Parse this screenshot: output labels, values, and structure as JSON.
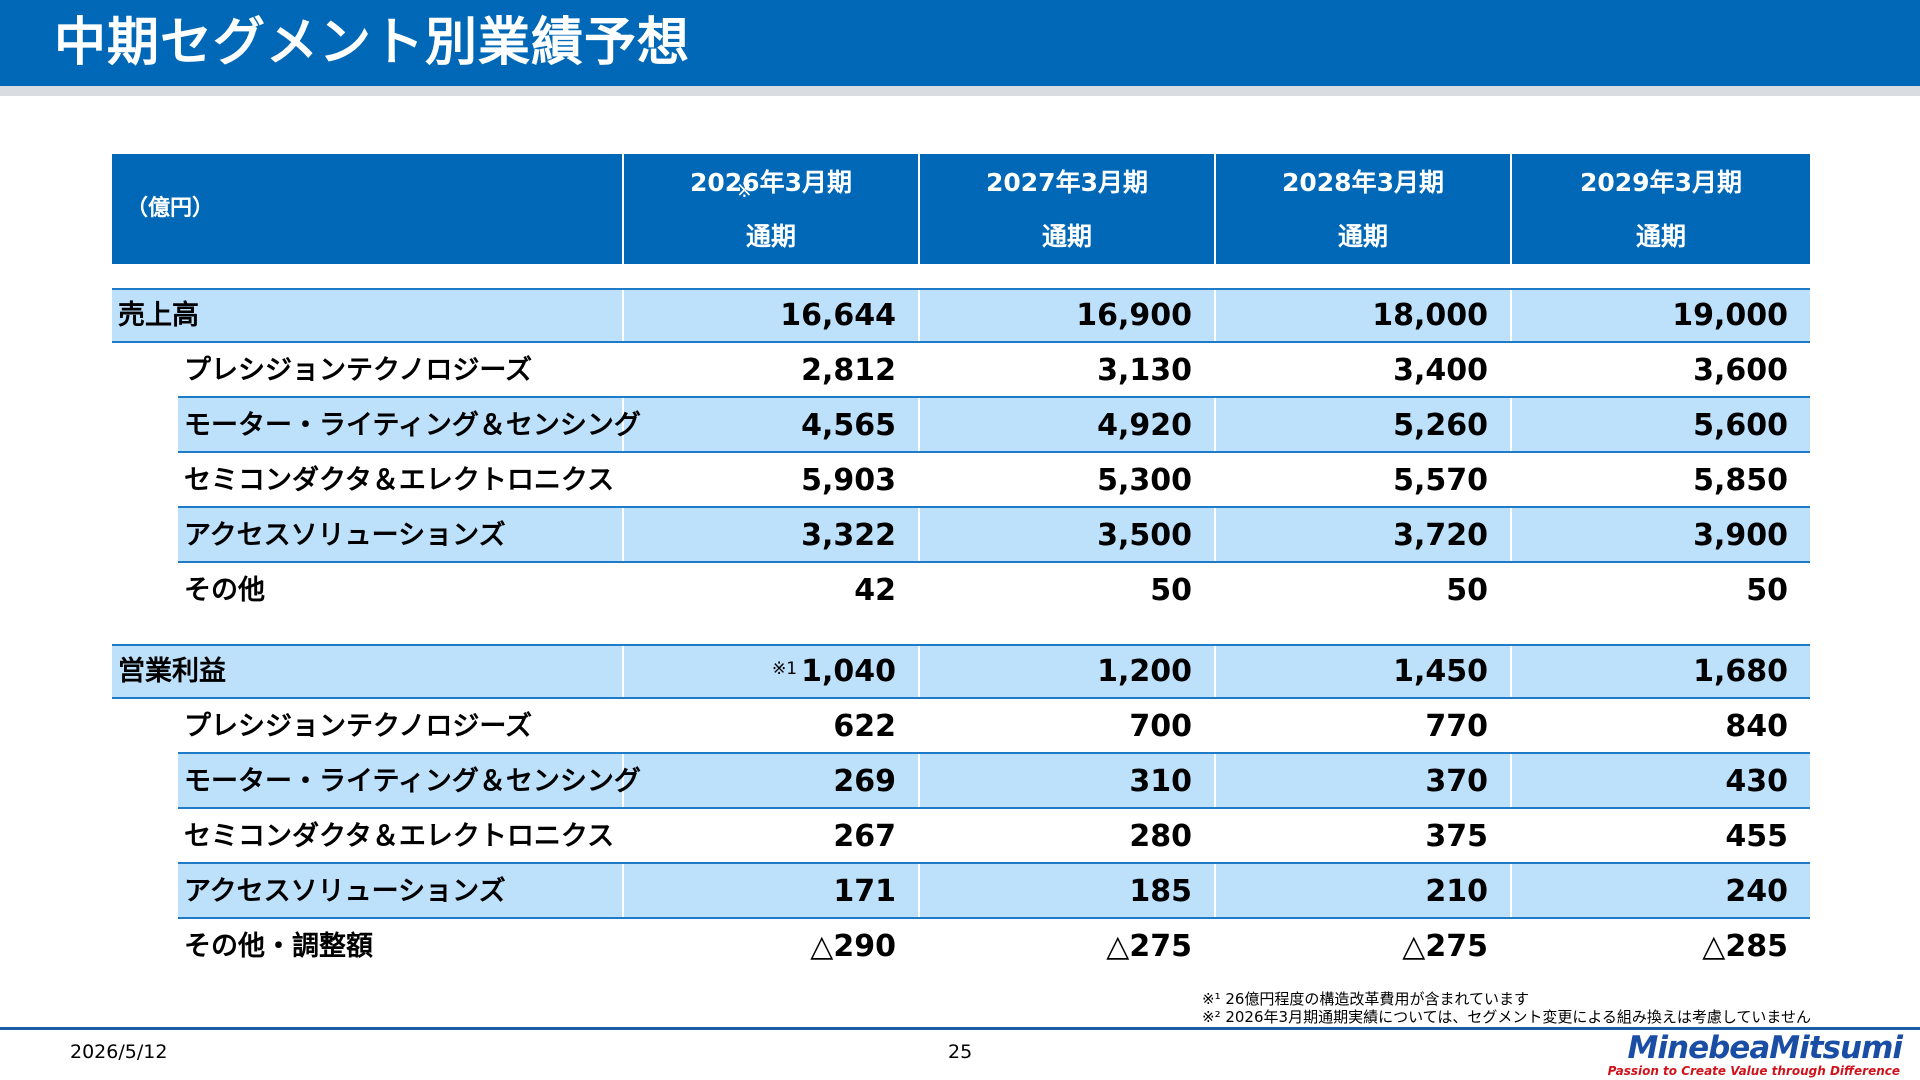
{
  "title": "中期セグメント別業績予想",
  "table": {
    "unit": "（億円）",
    "columns": [
      {
        "period": "2026年3月期",
        "span": "通期",
        "mark": "※"
      },
      {
        "period": "2027年3月期",
        "span": "通期"
      },
      {
        "period": "2028年3月期",
        "span": "通期"
      },
      {
        "period": "2029年3月期",
        "span": "通期"
      }
    ],
    "sections": [
      {
        "total": {
          "label": "売上高",
          "values": [
            "16,644",
            "16,900",
            "18,000",
            "19,000"
          ]
        },
        "rows": [
          {
            "label": "プレシジョンテクノロジーズ",
            "values": [
              "2,812",
              "3,130",
              "3,400",
              "3,600"
            ]
          },
          {
            "label": "モーター・ライティング＆センシング",
            "values": [
              "4,565",
              "4,920",
              "5,260",
              "5,600"
            ]
          },
          {
            "label": "セミコンダクタ＆エレクトロニクス",
            "values": [
              "5,903",
              "5,300",
              "5,570",
              "5,850"
            ]
          },
          {
            "label": "アクセスソリューションズ",
            "values": [
              "3,322",
              "3,500",
              "3,720",
              "3,900"
            ]
          },
          {
            "label": "その他",
            "values": [
              "42",
              "50",
              "50",
              "50"
            ]
          }
        ]
      },
      {
        "total": {
          "label": "営業利益",
          "values": [
            "1,040",
            "1,200",
            "1,450",
            "1,680"
          ],
          "first_mark": "※1"
        },
        "rows": [
          {
            "label": "プレシジョンテクノロジーズ",
            "values": [
              "622",
              "700",
              "770",
              "840"
            ]
          },
          {
            "label": "モーター・ライティング＆センシング",
            "values": [
              "269",
              "310",
              "370",
              "430"
            ]
          },
          {
            "label": "セミコンダクタ＆エレクトロニクス",
            "values": [
              "267",
              "280",
              "375",
              "455"
            ]
          },
          {
            "label": "アクセスソリューションズ",
            "values": [
              "171",
              "185",
              "210",
              "240"
            ]
          },
          {
            "label": "その他・調整額",
            "values": [
              "△290",
              "△275",
              "△275",
              "△285"
            ]
          }
        ]
      }
    ]
  },
  "footnotes": [
    "※¹ 26億円程度の構造改革費用が含まれています",
    "※² 2026年3月期通期実績については、セグメント変更による組み換えは考慮していません"
  ],
  "footer": {
    "date": "2026/5/12",
    "page": "25",
    "logo_name": "MinebeaMitsumi",
    "logo_tagline": "Passion to Create Value through Difference"
  },
  "colors": {
    "header_blue": "#0068b7",
    "stripe_light_blue": "#bde0fb",
    "rule_blue": "#1f7ac7",
    "logo_blue": "#1a4ea5",
    "logo_red": "#d0121b"
  }
}
